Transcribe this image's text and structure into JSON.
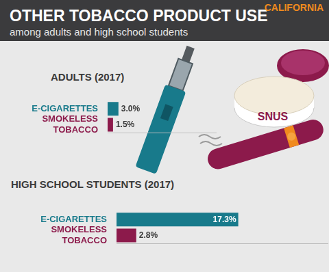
{
  "header": {
    "title": "OTHER TOBACCO PRODUCT USE",
    "subtitle": "among adults and high school students",
    "region": "CALIFORNIA"
  },
  "illustration": {
    "labels": [
      "SNUS"
    ]
  },
  "chart_data": [
    {
      "type": "bar",
      "title": "ADULTS (2017)",
      "orientation": "horizontal",
      "categories": [
        "E-CIGARETTES",
        "SMOKELESS TOBACCO"
      ],
      "values": [
        3.0,
        1.5
      ],
      "value_labels": [
        "3.0%",
        "1.5%"
      ],
      "colors": [
        "#187a8b",
        "#8c1a4b"
      ],
      "xlim": [
        0,
        30
      ],
      "data_labels": true,
      "tick_labels": "y",
      "grid": false
    },
    {
      "type": "bar",
      "title": "HIGH SCHOOL STUDENTS (2017)",
      "orientation": "horizontal",
      "categories": [
        "E-CIGARETTES",
        "SMOKELESS TOBACCO"
      ],
      "values": [
        17.3,
        2.8
      ],
      "value_labels": [
        "17.3%",
        "2.8%"
      ],
      "colors": [
        "#187a8b",
        "#8c1a4b"
      ],
      "xlim": [
        0,
        30
      ],
      "data_labels": true,
      "tick_labels": "y",
      "grid": false
    }
  ]
}
